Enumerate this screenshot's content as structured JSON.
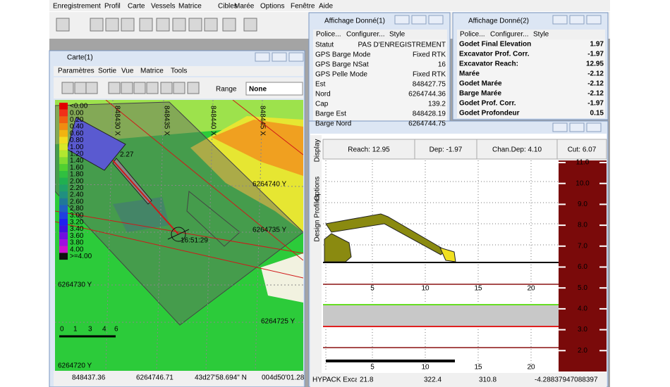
{
  "menu": [
    "Enregistrement",
    "Profil",
    "Carte",
    "Vessels",
    "Matrice",
    "Cibles",
    "Marée",
    "Options",
    "Fenêtre",
    "Aide"
  ],
  "map_window": {
    "title": "Carte(1)",
    "menu": [
      "Paramètres",
      "Sortie",
      "Vue",
      "Matrice",
      "Tools"
    ],
    "range_label": "Range",
    "range_value": "None",
    "legend": [
      "<0.00",
      "0.00",
      "0.20",
      "0.40",
      "0.60",
      "0.80",
      "1.00",
      "1.20",
      "1.40",
      "1.60",
      "1.80",
      "2.00",
      "2.20",
      "2.40",
      "2.60",
      "2.80",
      "3.00",
      "3.20",
      "3.40",
      "3.60",
      "3.80",
      "4.00",
      ">=4.00"
    ],
    "x_grid": [
      "848430 X",
      "848435 X",
      "848440 X",
      "848445 X"
    ],
    "y_grid": [
      "6264740 Y",
      "6264735 Y",
      "6264730 Y",
      "6264725 Y",
      "6264720 Y"
    ],
    "time_label": "16:51:29",
    "barge_label": "2.27",
    "scale": [
      "0",
      "1",
      "3",
      "4",
      "6"
    ],
    "status": [
      "848437.36",
      "6264746.71",
      "43d27'58.694\" N",
      "004d50'01.28"
    ]
  },
  "data1": {
    "title": "Affichage Donné(1)",
    "menu": [
      "Police...",
      "Configurer...",
      "Style"
    ],
    "rows": [
      [
        "Statut",
        "PAS D'ENREGISTREMENT"
      ],
      [
        "GPS Barge Mode",
        "Fixed RTK"
      ],
      [
        "GPS Barge NSat",
        "16"
      ],
      [
        "GPS Pelle Mode",
        "Fixed RTK"
      ],
      [
        "Est",
        "848427.75"
      ],
      [
        "Nord",
        "6264744.36"
      ],
      [
        "Cap",
        "139.2"
      ],
      [
        "Barge Est",
        "848428.19"
      ],
      [
        "Barge Nord",
        "6264744.75"
      ]
    ]
  },
  "data2": {
    "title": "Affichage Donné(2)",
    "menu": [
      "Police...",
      "Configurer...",
      "Style"
    ],
    "rows": [
      [
        "Godet Final Elevation",
        "1.97"
      ],
      [
        "Excavator Prof. Corr.",
        "-1.97"
      ],
      [
        "Excavator Reach:",
        "12.95"
      ],
      [
        "Marée",
        "-2.12"
      ],
      [
        "Godet Marée",
        "-2.12"
      ],
      [
        "Barge Marée",
        "-2.12"
      ],
      [
        "Godet Prof. Corr.",
        "-1.97"
      ],
      [
        "Godet Profondeur",
        "0.15"
      ]
    ]
  },
  "profile": {
    "tabs": [
      "Display",
      "Options",
      "Design Profiles"
    ],
    "header": [
      "Reach: 12.95",
      "Dep: -1.97",
      "Chan.Dep: 4.10",
      "Cut: 6.07"
    ],
    "x_labels": [
      "5",
      "10",
      "15",
      "20"
    ],
    "depth_scale": [
      "11.0",
      "10.0",
      "9.0",
      "8.0",
      "7.0",
      "6.0",
      "5.0",
      "4.0",
      "3.0",
      "2.0"
    ],
    "status": [
      "HYPACK Excavator",
      "21.8",
      "322.4",
      "310.8",
      "-4.28837947088397"
    ]
  }
}
